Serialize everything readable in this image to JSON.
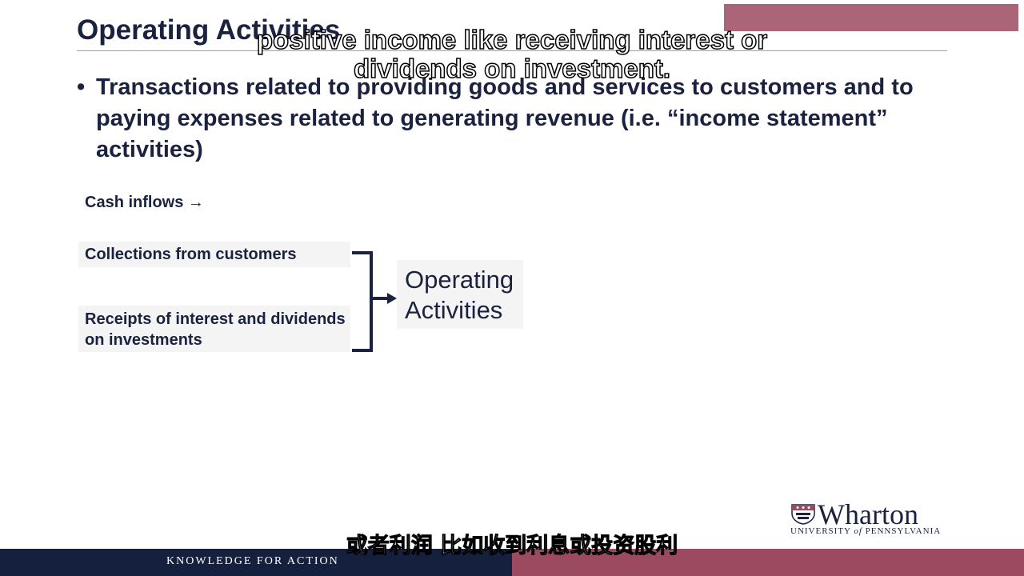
{
  "slide": {
    "title": "Operating Activities",
    "bullet_marker": "•",
    "bullet_text": "Transactions related to providing goods and services to customers and to paying expenses related to generating revenue (i.e. “income statement” activities)",
    "cash_inflows_label": "Cash inflows →",
    "items": [
      "Collections from customers",
      "Receipts of interest and dividends on investments"
    ],
    "result_label_line1": "Operating",
    "result_label_line2": "Activities"
  },
  "subtitles": {
    "english_line1": "positive income like receiving interest or",
    "english_line2": "dividends on investment.",
    "chinese": "或者利润 比如收到利息或投资股利"
  },
  "footer": {
    "tagline": "KNOWLEDGE FOR ACTION"
  },
  "logo": {
    "name": "Wharton",
    "university_prefix": "UNIVERSITY",
    "university_of": "of",
    "university_suffix": "PENNSYLVANIA"
  },
  "colors": {
    "navy": "#1b2240",
    "footer_navy": "#14203d",
    "accent_pink": "#9c4a60"
  }
}
